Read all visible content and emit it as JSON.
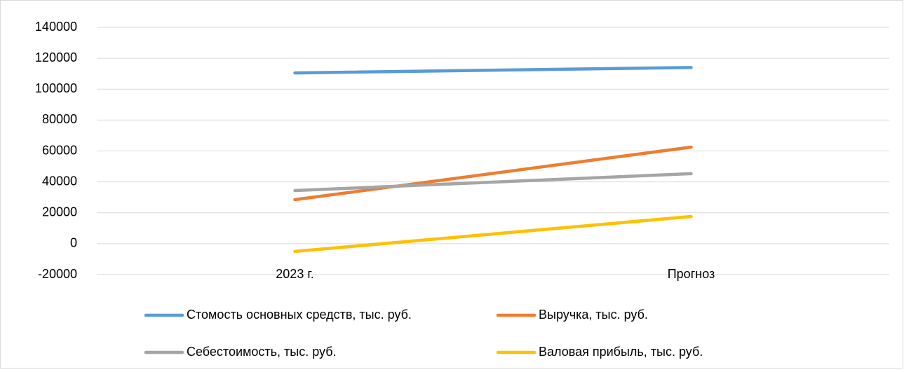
{
  "chart_data": {
    "type": "line",
    "categories": [
      "2023 г.",
      "Прогноз"
    ],
    "series": [
      {
        "name": "Стомость основных средств, тыс. руб.",
        "color": "#5b9bd5",
        "values": [
          110500,
          114000
        ]
      },
      {
        "name": "Выручка, тыс. руб.",
        "color": "#ed7d31",
        "values": [
          28500,
          62500
        ]
      },
      {
        "name": "Себестоимость, тыс. руб.",
        "color": "#a5a5a5",
        "values": [
          34400,
          45300
        ]
      },
      {
        "name": "Валовая прибыль, тыс. руб.",
        "color": "#ffc000",
        "values": [
          -5000,
          17600
        ]
      }
    ],
    "ylim": [
      -20000,
      140000
    ],
    "yticks": [
      -20000,
      0,
      20000,
      40000,
      60000,
      80000,
      100000,
      120000,
      140000
    ],
    "grid": true,
    "legend": "bottom"
  }
}
